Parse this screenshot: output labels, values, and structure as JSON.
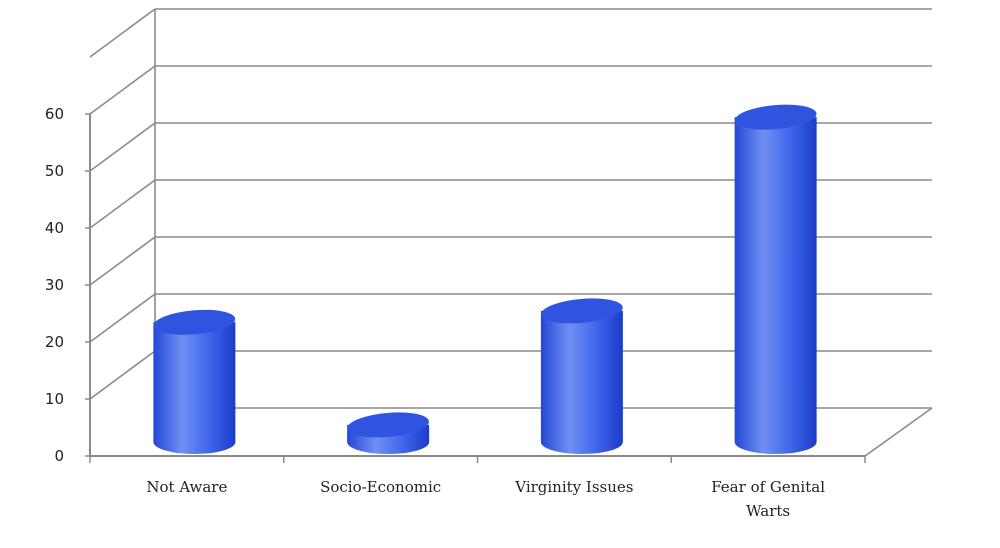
{
  "chart_data": {
    "type": "bar",
    "style": "3d-cylinder",
    "categories": [
      "Not Aware",
      "Socio-Economic",
      "Virginity Issues",
      "Fear of Genital Warts"
    ],
    "values": [
      21,
      3,
      23,
      57
    ],
    "title": "",
    "xlabel": "",
    "ylabel": "",
    "ylim": [
      0,
      60
    ],
    "yticks": [
      "0",
      "10",
      "20",
      "30",
      "40",
      "50",
      "60"
    ],
    "grid": true,
    "legend": "none",
    "colors": {
      "bar_light": "#6f8ff3",
      "bar_mid": "#3d63ea",
      "bar_dark": "#1b3cc9",
      "bar_top": "#2f55e0",
      "grid": "#8a8a8a",
      "floor": "#8a8a8a"
    }
  }
}
